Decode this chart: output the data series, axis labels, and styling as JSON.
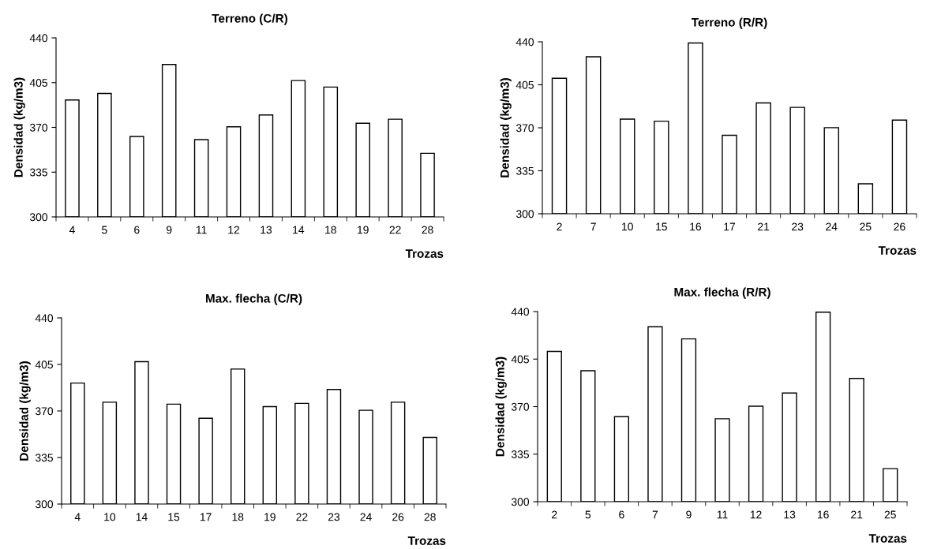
{
  "chart_data": [
    {
      "type": "bar",
      "title": "Terreno (C/R)",
      "xlabel": "Trozas",
      "ylabel": "Densidad (kg/m3)",
      "categories": [
        "4",
        "5",
        "6",
        "9",
        "11",
        "12",
        "13",
        "14",
        "18",
        "19",
        "22",
        "28"
      ],
      "values": [
        391.4,
        396.5,
        362.9,
        419.2,
        360.4,
        370.5,
        379.7,
        406.6,
        401.5,
        373.2,
        376.4,
        349.7
      ],
      "color": "#ffffff",
      "ylim": [
        300,
        440
      ],
      "yticks": [
        300,
        335,
        370,
        405,
        440
      ],
      "grid": false
    },
    {
      "type": "bar",
      "title": "Terreno (R/R)",
      "xlabel": "Trozas",
      "ylabel": "Densidad (kg/m3)",
      "categories": [
        "2",
        "7",
        "10",
        "15",
        "16",
        "17",
        "21",
        "23",
        "24",
        "25",
        "26"
      ],
      "values": [
        410.3,
        427.8,
        377.1,
        375.4,
        439.0,
        363.9,
        390.2,
        386.6,
        370.1,
        324.4,
        376.3
      ],
      "color": "#ffffff",
      "ylim": [
        300,
        440
      ],
      "yticks": [
        300,
        335,
        370,
        405,
        440
      ],
      "grid": false
    },
    {
      "type": "bar",
      "title": "Max. flecha (C/R)",
      "xlabel": "Trozas",
      "ylabel": "Densidad (kg/m3)",
      "categories": [
        "4",
        "10",
        "14",
        "15",
        "17",
        "18",
        "19",
        "22",
        "23",
        "24",
        "26",
        "28"
      ],
      "values": [
        391.0,
        376.6,
        407.1,
        375.1,
        364.5,
        401.5,
        373.3,
        375.7,
        386.2,
        370.5,
        376.6,
        350.1
      ],
      "color": "#ffffff",
      "ylim": [
        300,
        440
      ],
      "yticks": [
        300,
        335,
        370,
        405,
        440
      ],
      "grid": false
    },
    {
      "type": "bar",
      "title": "Max. flecha (R/R)",
      "xlabel": "Trozas",
      "ylabel": "Densidad (kg/m3)",
      "categories": [
        "2",
        "5",
        "6",
        "7",
        "9",
        "11",
        "12",
        "13",
        "16",
        "21",
        "25"
      ],
      "values": [
        410.7,
        396.4,
        362.6,
        428.8,
        419.9,
        361.1,
        370.3,
        380.0,
        439.6,
        390.8,
        324.3
      ],
      "color": "#ffffff",
      "ylim": [
        300,
        440
      ],
      "yticks": [
        300,
        335,
        370,
        405,
        440
      ],
      "grid": false
    }
  ]
}
